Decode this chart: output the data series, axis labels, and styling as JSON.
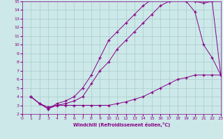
{
  "xlabel": "Windchill (Refroidissement éolien,°C)",
  "bg_color": "#cce8e8",
  "grid_color": "#aacccc",
  "line_color": "#880088",
  "xmin": 0,
  "xmax": 23,
  "ymin": 2,
  "ymax": 15,
  "curve1_x": [
    1,
    2,
    3,
    4,
    5,
    6,
    7,
    8,
    9,
    10,
    11,
    12,
    13,
    14,
    15,
    16,
    17,
    18,
    19,
    20,
    21,
    22,
    23
  ],
  "curve1_y": [
    4.0,
    3.2,
    2.8,
    3.0,
    3.0,
    3.0,
    3.0,
    3.0,
    3.0,
    3.0,
    3.2,
    3.4,
    3.7,
    4.0,
    4.5,
    5.0,
    5.5,
    6.0,
    6.2,
    6.5,
    6.5,
    6.5,
    6.5
  ],
  "curve2_x": [
    1,
    2,
    3,
    4,
    5,
    6,
    7,
    8,
    9,
    10,
    11,
    12,
    13,
    14,
    15,
    16,
    17,
    18,
    19,
    20,
    21,
    22,
    23
  ],
  "curve2_y": [
    4.0,
    3.2,
    2.6,
    3.0,
    3.2,
    3.5,
    4.0,
    5.5,
    7.0,
    8.0,
    9.5,
    10.5,
    11.5,
    12.5,
    13.5,
    14.5,
    15.0,
    15.2,
    15.0,
    13.8,
    10.0,
    8.5,
    6.5
  ],
  "curve3_x": [
    1,
    2,
    3,
    4,
    5,
    6,
    7,
    8,
    9,
    10,
    11,
    12,
    13,
    14,
    15,
    16,
    17,
    18,
    19,
    20,
    21,
    22,
    23
  ],
  "curve3_y": [
    4.0,
    3.2,
    2.6,
    3.2,
    3.5,
    4.0,
    5.0,
    6.5,
    8.5,
    10.5,
    11.5,
    12.5,
    13.5,
    14.5,
    15.2,
    15.5,
    15.5,
    15.5,
    15.2,
    15.0,
    14.8,
    15.0,
    6.5
  ]
}
